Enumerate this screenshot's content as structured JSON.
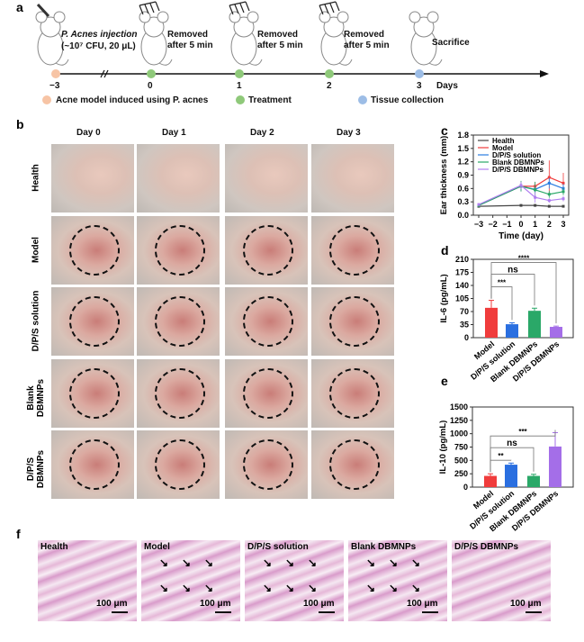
{
  "panel_a": {
    "label": "a",
    "injection": "P. Acnes injection",
    "injection_dose": "(~10⁷ CFU, 20 μL)",
    "removed": "Removed",
    "after": "after 5 min",
    "sacrifice": "Sacrifice",
    "days": [
      "−3",
      "0",
      "1",
      "2",
      "3"
    ],
    "days_label": "Days",
    "legend": [
      {
        "text": "Acne model induced using P. acnes",
        "color": "#f7c4a5"
      },
      {
        "text": "Treatment",
        "color": "#8fc97a"
      },
      {
        "text": "Tissue collection",
        "color": "#9dbde6"
      }
    ]
  },
  "panel_b": {
    "label": "b",
    "columns": [
      "Day 0",
      "Day 1",
      "Day 2",
      "Day 3"
    ],
    "rows": [
      "Health",
      "Model",
      "D/P/S solution",
      "Blank DBMNPs",
      "D/P/S DBMNPs"
    ]
  },
  "panel_f": {
    "label": "f",
    "images": [
      "Health",
      "Model",
      "D/P/S solution",
      "Blank DBMNPs",
      "D/P/S DBMNPs"
    ],
    "scale_bar": "100 μm"
  },
  "chart_data": [
    {
      "label": "c",
      "type": "line",
      "xlabel": "Time (day)",
      "ylabel": "Ear thickness (mm)",
      "x": [
        -3,
        0,
        1,
        2,
        3
      ],
      "xticks": [
        "−3",
        "−2",
        "−1",
        "0",
        "1",
        "2",
        "3"
      ],
      "xlim": [
        -3,
        3
      ],
      "ylim": [
        0,
        1.8
      ],
      "yticks": [
        "0.0",
        "0.3",
        "0.6",
        "0.9",
        "1.2",
        "1.5",
        "1.8"
      ],
      "legend": "top-left",
      "series": [
        {
          "name": "Health",
          "color": "#444444",
          "values": [
            0.2,
            0.22,
            0.22,
            0.2,
            0.2
          ],
          "errors": [
            0.02,
            0.02,
            0.02,
            0.02,
            0.02
          ]
        },
        {
          "name": "Model",
          "color": "#f03c3c",
          "values": [
            0.22,
            0.65,
            0.65,
            0.85,
            0.72
          ],
          "errors": [
            0.03,
            0.1,
            0.1,
            0.38,
            0.23
          ]
        },
        {
          "name": "D/P/S solution",
          "color": "#2a7de1",
          "values": [
            0.22,
            0.65,
            0.58,
            0.72,
            0.6
          ],
          "errors": [
            0.03,
            0.1,
            0.08,
            0.12,
            0.1
          ]
        },
        {
          "name": "Blank DBMNPs",
          "color": "#2aa868",
          "values": [
            0.22,
            0.65,
            0.57,
            0.47,
            0.53
          ],
          "errors": [
            0.03,
            0.12,
            0.18,
            0.08,
            0.08
          ]
        },
        {
          "name": "D/P/S DBMNPs",
          "color": "#b07ef0",
          "values": [
            0.24,
            0.67,
            0.4,
            0.33,
            0.37
          ],
          "errors": [
            0.03,
            0.08,
            0.12,
            0.05,
            0.06
          ]
        }
      ]
    },
    {
      "label": "d",
      "type": "bar",
      "ylabel": "IL-6 (pg/mL)",
      "categories": [
        "Model",
        "D/P/S solution",
        "Blank DBMNPs",
        "D/P/S DBMNPs"
      ],
      "colors": [
        "#f03c3c",
        "#2a6fe0",
        "#2aa868",
        "#a46ee8"
      ],
      "values": [
        80,
        36,
        72,
        29
      ],
      "errors": [
        20,
        4,
        7,
        2
      ],
      "ylim": [
        0,
        210
      ],
      "yticks": [
        "0",
        "35",
        "70",
        "105",
        "140",
        "175",
        "210"
      ],
      "significance": [
        {
          "pair": [
            0,
            1
          ],
          "text": "***"
        },
        {
          "pair": [
            0,
            2
          ],
          "text": "ns"
        },
        {
          "pair": [
            0,
            3
          ],
          "text": "****"
        }
      ]
    },
    {
      "label": "e",
      "type": "bar",
      "ylabel": "IL-10 (pg/mL)",
      "categories": [
        "Model",
        "D/P/S solution",
        "Blank DBMNPs",
        "D/P/S DBMNPs"
      ],
      "colors": [
        "#f03c3c",
        "#2a6fe0",
        "#2aa868",
        "#a46ee8"
      ],
      "values": [
        210,
        420,
        210,
        760
      ],
      "errors": [
        40,
        30,
        30,
        260
      ],
      "ylim": [
        0,
        1500
      ],
      "yticks": [
        "0",
        "250",
        "500",
        "750",
        "1000",
        "1250",
        "1500"
      ],
      "significance": [
        {
          "pair": [
            0,
            1
          ],
          "text": "**"
        },
        {
          "pair": [
            0,
            2
          ],
          "text": "ns"
        },
        {
          "pair": [
            0,
            3
          ],
          "text": "***"
        }
      ]
    }
  ]
}
